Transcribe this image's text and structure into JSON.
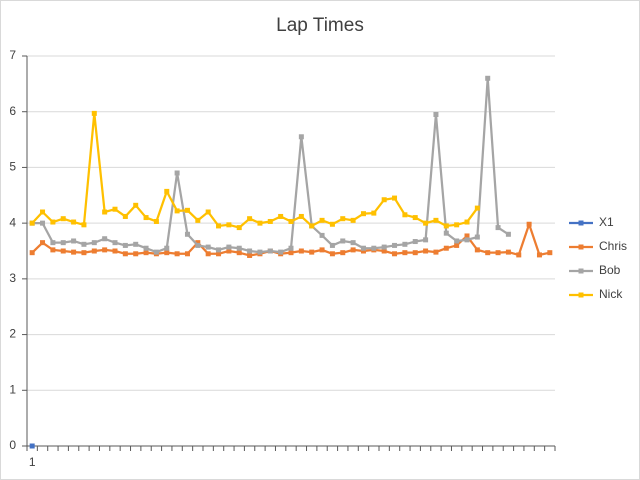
{
  "chart_data": {
    "type": "line",
    "title": "Lap Times",
    "categories": [
      "1",
      null,
      null,
      null,
      null,
      null,
      null,
      null,
      null,
      null,
      null,
      null,
      null,
      null,
      null,
      null,
      null,
      null,
      null,
      null,
      null,
      null,
      null,
      null,
      null,
      null,
      null,
      null,
      null,
      null,
      null,
      null,
      null,
      null,
      null,
      null,
      null,
      null,
      null,
      null,
      null,
      null,
      null,
      null,
      null,
      null,
      null,
      null,
      null,
      null,
      null
    ],
    "series": [
      {
        "name": "X1",
        "color": "#4472c4",
        "values": [
          0,
          null,
          null,
          null,
          null,
          null,
          null,
          null,
          null,
          null,
          null,
          null,
          null,
          null,
          null,
          null,
          null,
          null,
          null,
          null,
          null,
          null,
          null,
          null,
          null,
          null,
          null,
          null,
          null,
          null,
          null,
          null,
          null,
          null,
          null,
          null,
          null,
          null,
          null,
          null,
          null,
          null,
          null,
          null,
          null,
          null,
          null,
          null,
          null,
          null,
          null
        ]
      },
      {
        "name": "Chris",
        "color": "#ed7d31",
        "values": [
          3.47,
          3.65,
          3.52,
          3.5,
          3.48,
          3.47,
          3.5,
          3.52,
          3.5,
          3.45,
          3.45,
          3.47,
          3.45,
          3.47,
          3.45,
          3.45,
          3.65,
          3.45,
          3.45,
          3.5,
          3.47,
          3.42,
          3.45,
          3.5,
          3.45,
          3.47,
          3.5,
          3.48,
          3.52,
          3.45,
          3.47,
          3.52,
          3.5,
          3.52,
          3.5,
          3.45,
          3.47,
          3.47,
          3.5,
          3.48,
          3.55,
          3.6,
          3.77,
          3.52,
          3.47,
          3.47,
          3.48,
          3.43,
          3.98,
          3.43,
          3.47
        ]
      },
      {
        "name": "Bob",
        "color": "#a5a5a5",
        "values": [
          4.0,
          4.0,
          3.65,
          3.65,
          3.68,
          3.62,
          3.65,
          3.72,
          3.65,
          3.6,
          3.62,
          3.55,
          3.48,
          3.55,
          4.9,
          3.8,
          3.6,
          3.57,
          3.52,
          3.57,
          3.55,
          3.5,
          3.48,
          3.5,
          3.48,
          3.55,
          5.55,
          3.95,
          3.78,
          3.6,
          3.68,
          3.65,
          3.55,
          3.55,
          3.57,
          3.6,
          3.62,
          3.67,
          3.7,
          5.95,
          3.82,
          3.68,
          3.7,
          3.75,
          6.6,
          3.92,
          3.8,
          null,
          null,
          null,
          null
        ]
      },
      {
        "name": "Nick",
        "color": "#ffc000",
        "values": [
          4.0,
          4.2,
          4.02,
          4.08,
          4.02,
          3.97,
          5.97,
          4.2,
          4.25,
          4.12,
          4.32,
          4.1,
          4.03,
          4.57,
          4.22,
          4.23,
          4.05,
          4.2,
          3.95,
          3.97,
          3.92,
          4.08,
          4.0,
          4.03,
          4.12,
          4.03,
          4.12,
          3.95,
          4.05,
          3.98,
          4.08,
          4.05,
          4.17,
          4.18,
          4.42,
          4.45,
          4.15,
          4.1,
          4.0,
          4.05,
          3.95,
          3.97,
          4.02,
          4.27,
          null,
          null,
          null,
          null,
          null,
          null,
          null
        ]
      }
    ],
    "ylim": [
      0,
      7
    ],
    "yticks": [
      0,
      1,
      2,
      3,
      4,
      5,
      6,
      7
    ],
    "grid": true,
    "legend": "right"
  }
}
